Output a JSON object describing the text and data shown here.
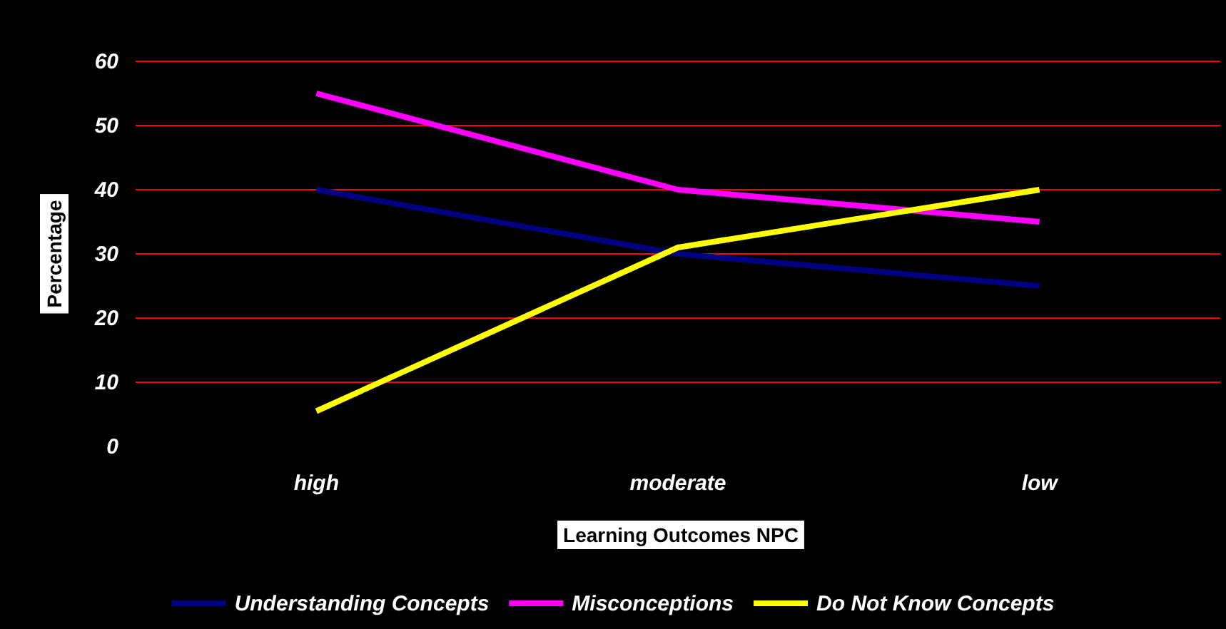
{
  "chart_data": {
    "type": "line",
    "xlabel": "Learning Outcomes NPC",
    "ylabel": "Percentage",
    "categories": [
      "high",
      "moderate",
      "low"
    ],
    "series": [
      {
        "name": "Understanding Concepts",
        "color": "#000080",
        "values": [
          40,
          30,
          25
        ]
      },
      {
        "name": "Misconceptions",
        "color": "#ff00ff",
        "values": [
          55,
          40,
          35
        ]
      },
      {
        "name": "Do Not Know Concepts",
        "color": "#ffff00",
        "values": [
          5.5,
          31,
          40
        ]
      }
    ],
    "ylim": [
      0,
      60
    ],
    "yticks": [
      0,
      10,
      20,
      30,
      40,
      50,
      60
    ],
    "grid": "y",
    "legend": "bottom",
    "marker": "none",
    "line_style": "solid"
  }
}
